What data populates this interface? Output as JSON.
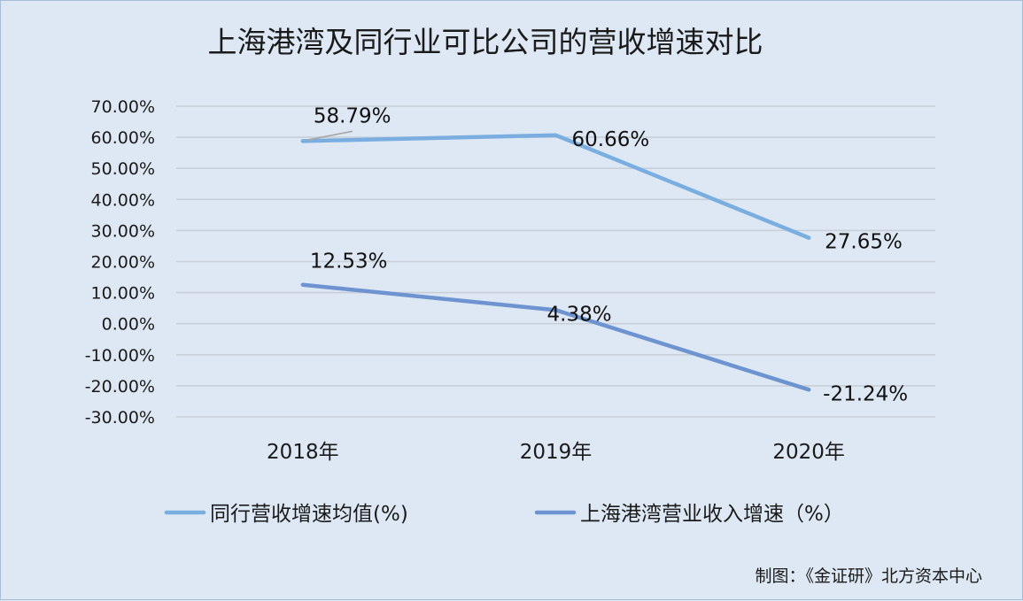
{
  "chart_data": {
    "type": "line",
    "title": "上海港湾及同行业可比公司的营收增速对比",
    "categories": [
      "2018年",
      "2019年",
      "2020年"
    ],
    "ylim": [
      -30,
      70
    ],
    "yticks": [
      70,
      60,
      50,
      40,
      30,
      20,
      10,
      0,
      -10,
      -20,
      -30
    ],
    "ytick_labels": [
      "70.00%",
      "60.00%",
      "50.00%",
      "40.00%",
      "30.00%",
      "20.00%",
      "10.00%",
      "0.00%",
      "-10.00%",
      "-20.00%",
      "-30.00%"
    ],
    "grid": true,
    "legend_position": "bottom",
    "series": [
      {
        "name": "同行营收增速均值(%)",
        "color": "#7aaee0",
        "values": [
          58.79,
          60.66,
          27.65
        ],
        "labels": [
          "58.79%",
          "60.66%",
          "27.65%"
        ]
      },
      {
        "name": "上海港湾营业收入增速（%）",
        "color": "#6e93d1",
        "values": [
          12.53,
          4.38,
          -21.24
        ],
        "labels": [
          "12.53%",
          "4.38%",
          "-21.24%"
        ]
      }
    ],
    "source": "制图：《金证研》北方资本中心"
  }
}
